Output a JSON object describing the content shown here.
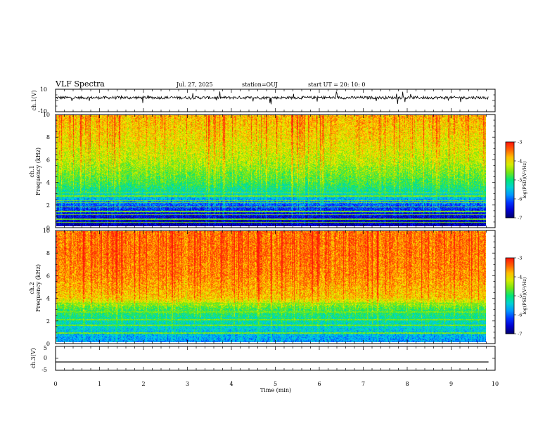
{
  "header": {
    "title": "VLF Spectra",
    "date": "Jul. 27, 2025",
    "station": "station=OUJ",
    "start": "start UT =  20: 10: 0"
  },
  "chart_data": [
    {
      "type": "line",
      "id": "ch1-waveform",
      "ylabel": "ch.1(V)",
      "ylim": [
        -10,
        10
      ],
      "y_tick_labels": [
        "10",
        "-10"
      ],
      "x": [
        0,
        9.85
      ],
      "values": [
        2.5,
        2.5
      ],
      "note": "noisy waveform around +2.5 V"
    },
    {
      "type": "heatmap",
      "id": "ch1-spectrogram",
      "ylabel": "ch.1",
      "ylabel2": "Frequency  (kHz)",
      "ylim": [
        0,
        10
      ],
      "y_tick_labels": [
        "0",
        "2",
        "4",
        "6",
        "8",
        "10"
      ],
      "xlim": [
        0,
        9.85
      ],
      "colorbar": {
        "label": "log(PSD)(V²/Hz)",
        "range": [
          -7,
          -3
        ],
        "tick_labels": [
          "-3",
          "-4",
          "-5",
          "-6",
          "-7"
        ]
      },
      "levels_by_freq_kHz": [
        [
          0,
          -6.8
        ],
        [
          1,
          -6.5
        ],
        [
          2,
          -6.0
        ],
        [
          3,
          -5.2
        ],
        [
          4,
          -4.8
        ],
        [
          6,
          -4.3
        ],
        [
          8,
          -4.0
        ],
        [
          10,
          -3.8
        ]
      ],
      "horizontal_lines_kHz": [
        0.3,
        0.6,
        1.0,
        1.3,
        1.7,
        2.1,
        2.3,
        2.7,
        3.0
      ]
    },
    {
      "type": "heatmap",
      "id": "ch2-spectrogram",
      "ylabel": "ch.2",
      "ylabel2": "Frequency  (kHz)",
      "ylim": [
        0,
        10
      ],
      "y_tick_labels": [
        "0",
        "2",
        "4",
        "6",
        "8",
        "10"
      ],
      "xlim": [
        0,
        9.85
      ],
      "colorbar": {
        "label": "log(PSD)(V²/Hz)",
        "range": [
          -7,
          -3
        ],
        "tick_labels": [
          "-3",
          "-4",
          "-5",
          "-6",
          "-7"
        ]
      },
      "levels_by_freq_kHz": [
        [
          0,
          -5.8
        ],
        [
          1,
          -5.5
        ],
        [
          2,
          -5.2
        ],
        [
          3,
          -4.8
        ],
        [
          4,
          -3.9
        ],
        [
          6,
          -3.6
        ],
        [
          8,
          -3.5
        ],
        [
          10,
          -3.5
        ]
      ],
      "horizontal_lines_kHz": [
        0.8,
        1.5,
        2.0,
        2.7,
        3.5
      ]
    },
    {
      "type": "line",
      "id": "ch3-waveform",
      "ylabel": "ch.3(V)",
      "ylim": [
        -5,
        5
      ],
      "y_tick_labels": [
        "5",
        "0",
        "-5"
      ],
      "x": [
        0,
        9.85
      ],
      "values": [
        -1.5,
        -1.5
      ]
    }
  ],
  "xaxis": {
    "label": "Time  (min)",
    "range": [
      0,
      10
    ],
    "tick_labels": [
      "0",
      "1",
      "2",
      "3",
      "4",
      "5",
      "6",
      "7",
      "8",
      "9",
      "10"
    ]
  }
}
